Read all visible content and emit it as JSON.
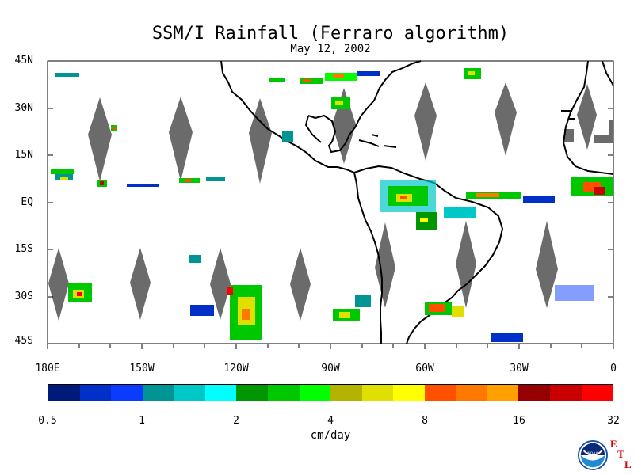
{
  "title": "SSM/I Rainfall (Ferraro algorithm)",
  "date": "May 12, 2002",
  "lat_labels": [
    "45N",
    "30N",
    "15N",
    "EQ",
    "15S",
    "30S",
    "45S"
  ],
  "lon_labels": [
    "180E",
    "150W",
    "120W",
    "90W",
    "60W",
    "30W",
    "0"
  ],
  "colorbar": {
    "tick_labels": [
      "0.5",
      "1",
      "2",
      "4",
      "8",
      "16",
      "32"
    ],
    "units": "cm/day",
    "colors": [
      "#001a7a",
      "#0030c8",
      "#0a3cff",
      "#009494",
      "#00c8c8",
      "#00ffff",
      "#009600",
      "#00c800",
      "#00ff00",
      "#b4b400",
      "#e0e000",
      "#ffff00",
      "#ff5000",
      "#ff7800",
      "#ffa000",
      "#960000",
      "#c80000",
      "#ff0000"
    ]
  },
  "logo": {
    "org_text": "NOAA",
    "etl_letters": [
      "E",
      "T",
      "L"
    ]
  },
  "map_colors": {
    "land_outline": "#000000",
    "data_gap": "#6b6b6b",
    "background": "#ffffff"
  }
}
